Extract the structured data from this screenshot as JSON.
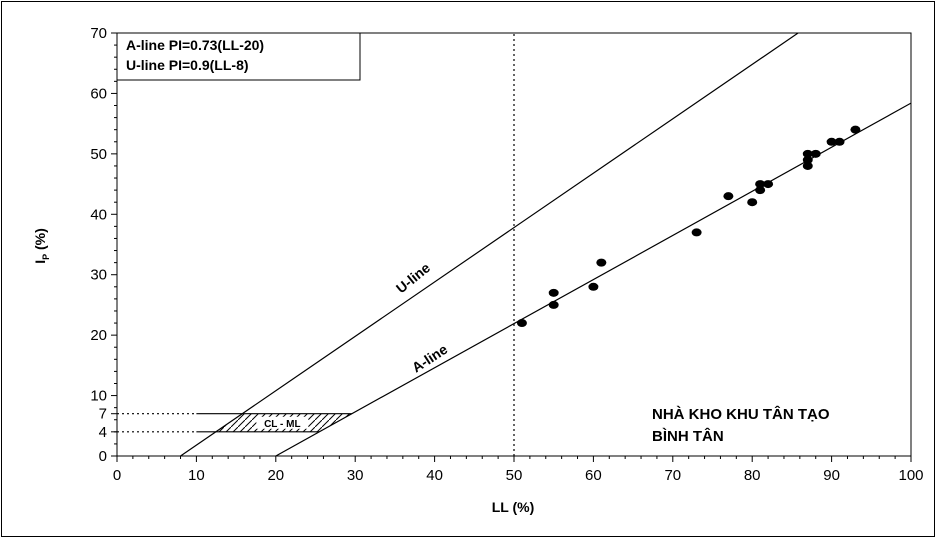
{
  "chart_data": {
    "type": "scatter",
    "xlabel": "LL (%)",
    "ylabel_main": "I",
    "ylabel_sub": "P",
    "ylabel_unit": " (%)",
    "xlim": [
      0,
      100
    ],
    "ylim": [
      0,
      70
    ],
    "x_ticks": [
      0,
      10,
      20,
      30,
      40,
      50,
      60,
      70,
      80,
      90,
      100
    ],
    "y_ticks": [
      0,
      4,
      7,
      10,
      20,
      30,
      40,
      50,
      60,
      70
    ],
    "grid": false,
    "legend": {
      "placement": "top-left",
      "entries": [
        "A-line PI=0.73(LL-20)",
        "U-line PI=0.9(LL-8)"
      ]
    },
    "annotation_lines": [
      "NHÀ KHO KHU TÂN TẠO",
      "BÌNH TÂN"
    ],
    "a_line": {
      "label": "A-line",
      "slope": 0.73,
      "x_intercept": 20
    },
    "u_line": {
      "label": "U-line",
      "slope": 0.9,
      "x_intercept": 8
    },
    "vertical_reference_x": 50,
    "cl_ml_zone": {
      "label": "CL - ML",
      "pi_range": [
        4,
        7
      ]
    },
    "points": [
      {
        "x": 51,
        "y": 22
      },
      {
        "x": 55,
        "y": 25
      },
      {
        "x": 55,
        "y": 27
      },
      {
        "x": 60,
        "y": 28
      },
      {
        "x": 61,
        "y": 32
      },
      {
        "x": 73,
        "y": 37
      },
      {
        "x": 77,
        "y": 43
      },
      {
        "x": 80,
        "y": 42
      },
      {
        "x": 81,
        "y": 44
      },
      {
        "x": 81,
        "y": 45
      },
      {
        "x": 82,
        "y": 45
      },
      {
        "x": 87,
        "y": 48
      },
      {
        "x": 87,
        "y": 49
      },
      {
        "x": 87,
        "y": 50
      },
      {
        "x": 88,
        "y": 50
      },
      {
        "x": 90,
        "y": 52
      },
      {
        "x": 91,
        "y": 52
      },
      {
        "x": 93,
        "y": 54
      }
    ]
  }
}
